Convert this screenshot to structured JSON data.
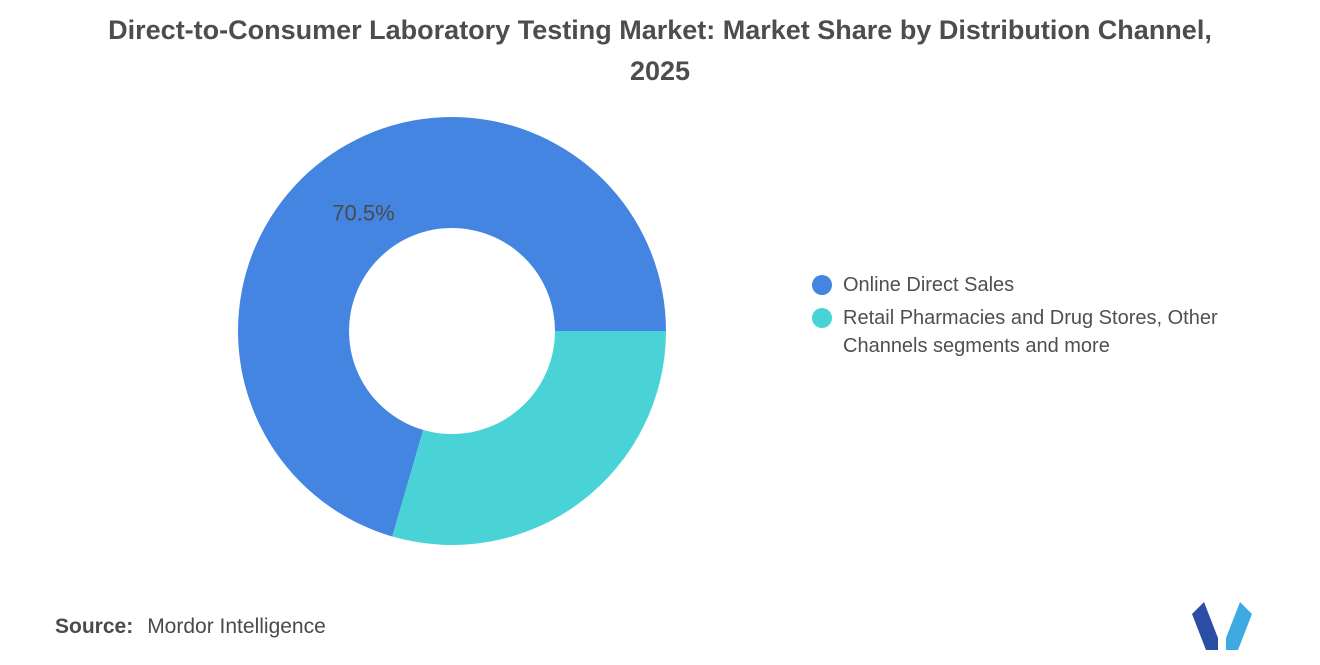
{
  "title": "Direct-to-Consumer Laboratory Testing Market: Market Share by Distribution Channel, 2025",
  "chart_data": {
    "type": "pie",
    "subtype": "donut",
    "title": "Direct-to-Consumer Laboratory Testing Market: Market Share by Distribution Channel, 2025",
    "categories": [
      "Online Direct Sales",
      "Retail Pharmacies and Drug Stores, Other Channels segments and more"
    ],
    "values": [
      70.5,
      29.5
    ],
    "colors": [
      "#4485E2",
      "#4AD3D6"
    ],
    "slice_labels": [
      "70.5%",
      ""
    ],
    "start_angle_deg": 106.2,
    "donut_hole_ratio": 0.48,
    "legend_position": "right",
    "label_color": "#4a4a4a"
  },
  "legend": {
    "items": [
      {
        "label": "Online Direct Sales",
        "color": "#4485E2"
      },
      {
        "label": "Retail Pharmacies and Drug Stores, Other Channels segments and more",
        "color": "#4AD3D6"
      }
    ]
  },
  "source": {
    "label": "Source:",
    "value": "Mordor Intelligence"
  },
  "logo": {
    "name": "mordor-intelligence-logo",
    "colors": [
      "#2B4EA5",
      "#3FA9E1"
    ]
  }
}
